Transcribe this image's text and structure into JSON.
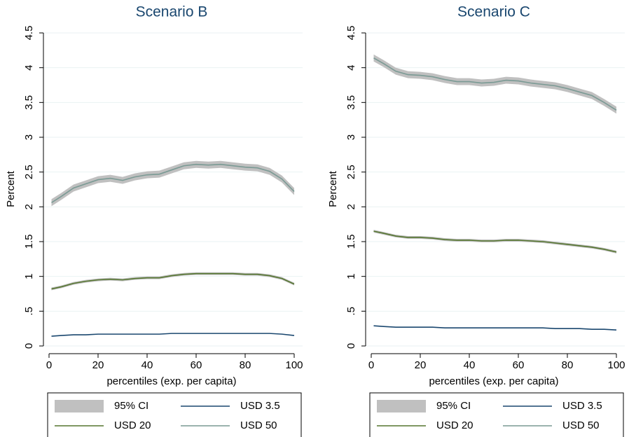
{
  "chart_data": [
    {
      "type": "line",
      "title": "Scenario B",
      "x_label": "percentiles (exp. per capita)",
      "y_label": "Percent",
      "x": [
        1,
        5,
        10,
        15,
        20,
        25,
        30,
        35,
        40,
        45,
        50,
        55,
        60,
        65,
        70,
        75,
        80,
        85,
        90,
        95,
        100
      ],
      "xlim": [
        0,
        100
      ],
      "xticks": [
        0,
        20,
        40,
        60,
        80,
        100
      ],
      "ylim": [
        0,
        4.5
      ],
      "yticks": [
        0,
        {
          "value": 0.5,
          "label": ".5"
        },
        1,
        1.5,
        2,
        2.5,
        3,
        3.5,
        4,
        4.5
      ],
      "grid": true,
      "ci_name": "95% CI",
      "ci_color": "#c0c0c0",
      "series": [
        {
          "name": "USD 3.5",
          "color": "#1a476f",
          "values": [
            0.14,
            0.15,
            0.16,
            0.16,
            0.17,
            0.17,
            0.17,
            0.17,
            0.17,
            0.17,
            0.18,
            0.18,
            0.18,
            0.18,
            0.18,
            0.18,
            0.18,
            0.18,
            0.18,
            0.17,
            0.15
          ]
        },
        {
          "name": "USD 20",
          "color": "#55752f",
          "values": [
            0.82,
            0.85,
            0.9,
            0.93,
            0.95,
            0.96,
            0.95,
            0.97,
            0.98,
            0.98,
            1.01,
            1.03,
            1.04,
            1.04,
            1.04,
            1.04,
            1.03,
            1.03,
            1.01,
            0.97,
            0.89
          ],
          "ci_lower": [
            0.8,
            0.83,
            0.88,
            0.91,
            0.93,
            0.94,
            0.93,
            0.95,
            0.96,
            0.96,
            0.99,
            1.01,
            1.02,
            1.02,
            1.02,
            1.02,
            1.01,
            1.01,
            0.99,
            0.95,
            0.87
          ],
          "ci_upper": [
            0.84,
            0.87,
            0.92,
            0.95,
            0.97,
            0.98,
            0.97,
            0.99,
            1.0,
            1.0,
            1.03,
            1.05,
            1.06,
            1.06,
            1.06,
            1.06,
            1.05,
            1.05,
            1.03,
            0.99,
            0.91
          ]
        },
        {
          "name": "USD 50",
          "color": "#7a9a94",
          "values": [
            2.06,
            2.15,
            2.27,
            2.33,
            2.39,
            2.41,
            2.38,
            2.43,
            2.46,
            2.47,
            2.53,
            2.59,
            2.61,
            2.6,
            2.61,
            2.59,
            2.57,
            2.56,
            2.51,
            2.4,
            2.22
          ],
          "ci_lower": [
            2.01,
            2.1,
            2.22,
            2.28,
            2.34,
            2.36,
            2.33,
            2.38,
            2.41,
            2.42,
            2.48,
            2.54,
            2.56,
            2.55,
            2.56,
            2.54,
            2.52,
            2.51,
            2.46,
            2.35,
            2.17
          ],
          "ci_upper": [
            2.11,
            2.2,
            2.32,
            2.38,
            2.44,
            2.46,
            2.43,
            2.48,
            2.51,
            2.52,
            2.58,
            2.64,
            2.66,
            2.65,
            2.66,
            2.64,
            2.62,
            2.61,
            2.56,
            2.45,
            2.27
          ]
        }
      ]
    },
    {
      "type": "line",
      "title": "Scenario C",
      "x_label": "percentiles (exp. per capita)",
      "y_label": "Percent",
      "x": [
        1,
        5,
        10,
        15,
        20,
        25,
        30,
        35,
        40,
        45,
        50,
        55,
        60,
        65,
        70,
        75,
        80,
        85,
        90,
        95,
        100
      ],
      "xlim": [
        0,
        100
      ],
      "xticks": [
        0,
        20,
        40,
        60,
        80,
        100
      ],
      "ylim": [
        0,
        4.5
      ],
      "yticks": [
        0,
        {
          "value": 0.5,
          "label": ".5"
        },
        1,
        1.5,
        2,
        2.5,
        3,
        3.5,
        4,
        4.5
      ],
      "grid": true,
      "ci_name": "95% CI",
      "ci_color": "#c0c0c0",
      "series": [
        {
          "name": "USD 3.5",
          "color": "#1a476f",
          "values": [
            0.29,
            0.28,
            0.27,
            0.27,
            0.27,
            0.27,
            0.26,
            0.26,
            0.26,
            0.26,
            0.26,
            0.26,
            0.26,
            0.26,
            0.26,
            0.25,
            0.25,
            0.25,
            0.24,
            0.24,
            0.23
          ]
        },
        {
          "name": "USD 20",
          "color": "#55752f",
          "values": [
            1.65,
            1.62,
            1.58,
            1.56,
            1.56,
            1.55,
            1.53,
            1.52,
            1.52,
            1.51,
            1.51,
            1.52,
            1.52,
            1.51,
            1.5,
            1.48,
            1.46,
            1.44,
            1.42,
            1.39,
            1.35
          ],
          "ci_lower": [
            1.63,
            1.6,
            1.56,
            1.54,
            1.54,
            1.53,
            1.51,
            1.5,
            1.5,
            1.49,
            1.49,
            1.5,
            1.5,
            1.49,
            1.48,
            1.46,
            1.44,
            1.42,
            1.4,
            1.37,
            1.33
          ],
          "ci_upper": [
            1.67,
            1.64,
            1.6,
            1.58,
            1.58,
            1.57,
            1.55,
            1.54,
            1.54,
            1.53,
            1.53,
            1.54,
            1.54,
            1.53,
            1.52,
            1.5,
            1.48,
            1.46,
            1.44,
            1.41,
            1.37
          ]
        },
        {
          "name": "USD 50",
          "color": "#7a9a94",
          "values": [
            4.14,
            4.06,
            3.95,
            3.9,
            3.89,
            3.87,
            3.83,
            3.8,
            3.8,
            3.78,
            3.79,
            3.82,
            3.81,
            3.78,
            3.76,
            3.74,
            3.7,
            3.65,
            3.6,
            3.5,
            3.39
          ],
          "ci_lower": [
            4.09,
            4.01,
            3.9,
            3.85,
            3.84,
            3.82,
            3.78,
            3.75,
            3.75,
            3.73,
            3.74,
            3.77,
            3.76,
            3.73,
            3.71,
            3.69,
            3.65,
            3.6,
            3.55,
            3.45,
            3.34
          ],
          "ci_upper": [
            4.19,
            4.11,
            4.0,
            3.95,
            3.94,
            3.92,
            3.88,
            3.85,
            3.85,
            3.83,
            3.84,
            3.87,
            3.86,
            3.83,
            3.81,
            3.79,
            3.75,
            3.7,
            3.65,
            3.55,
            3.44
          ]
        }
      ]
    }
  ]
}
